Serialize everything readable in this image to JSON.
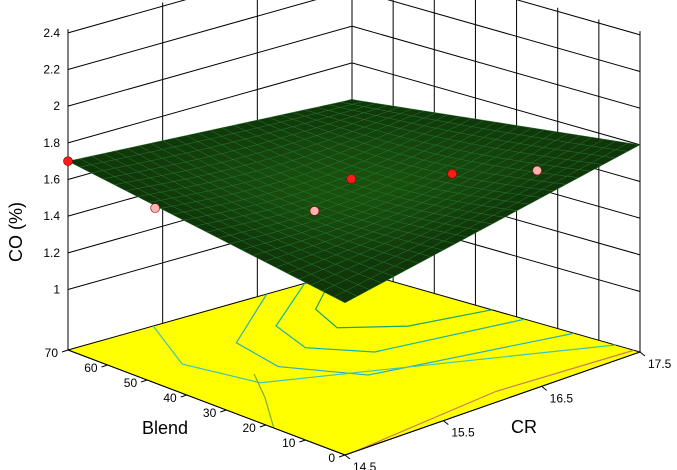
{
  "chart_data": {
    "type": "surface",
    "title": "",
    "zlabel": "CO (%)",
    "xlabel": "CR",
    "ylabel": "Blend",
    "x_ticks": [
      "14.5",
      "15.5",
      "16.5",
      "17.5"
    ],
    "y_ticks": [
      "0",
      "10",
      "20",
      "30",
      "40",
      "50",
      "60",
      "70"
    ],
    "z_ticks": [
      "1",
      "1.2",
      "1.4",
      "1.6",
      "1.8",
      "2",
      "2.2",
      "2.4"
    ],
    "xlim": [
      14.5,
      17.5
    ],
    "ylim": [
      0,
      70
    ],
    "zlim": [
      1,
      2.4
    ],
    "surface_corners": [
      {
        "cr": 14.5,
        "blend": 70,
        "co": 1.7
      },
      {
        "cr": 14.5,
        "blend": 0,
        "co": 1.5
      },
      {
        "cr": 17.5,
        "blend": 70,
        "co": 1.6
      },
      {
        "cr": 17.5,
        "blend": 0,
        "co": 1.8
      }
    ],
    "design_points": [
      {
        "cr": 14.5,
        "blend": 70,
        "co": 1.7,
        "above_surface": true
      },
      {
        "cr": 15.0,
        "blend": 60,
        "co": 1.45,
        "above_surface": false
      },
      {
        "cr": 15.0,
        "blend": 20,
        "co": 1.75,
        "above_surface": false
      },
      {
        "cr": 16.0,
        "blend": 35,
        "co": 1.64,
        "above_surface": true
      },
      {
        "cr": 16.0,
        "blend": 10,
        "co": 1.85,
        "above_surface": true
      },
      {
        "cr": 17.5,
        "blend": 25,
        "co": 1.5,
        "above_surface": false
      }
    ],
    "contour_floor_color": "#ffff00",
    "surface_color": "#0b2208",
    "point_colors": {
      "above": "#ff1a1a",
      "below": "#ffb3b3"
    },
    "grid": true
  }
}
